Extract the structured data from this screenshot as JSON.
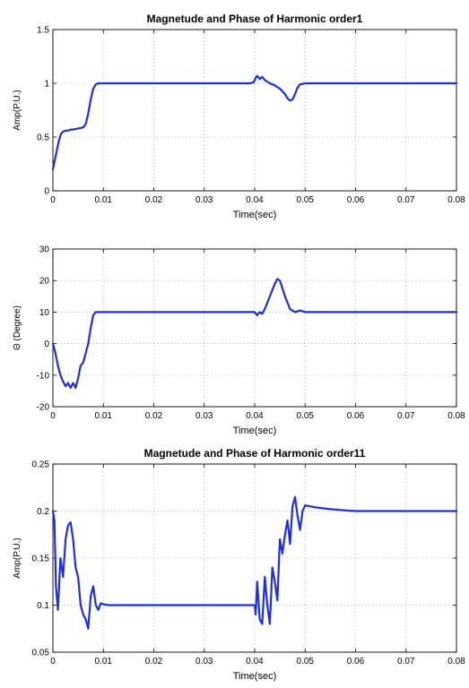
{
  "chart_data": [
    {
      "type": "line",
      "title": "Magnetude and Phase of Harmonic order1",
      "xlabel": "Time(sec)",
      "ylabel": "Amp(P.U.)",
      "xlim": [
        0,
        0.08
      ],
      "ylim": [
        0,
        1.5
      ],
      "xticks": [
        "0",
        "0.01",
        "0.02",
        "0.03",
        "0.04",
        "0.05",
        "0.06",
        "0.07",
        "0.08"
      ],
      "yticks": [
        "0",
        "0.5",
        "1",
        "1.5"
      ],
      "grid": true,
      "color": "#1f2fe0",
      "series": [
        {
          "x": [
            0,
            0.0003,
            0.0008,
            0.0012,
            0.0016,
            0.002,
            0.0025,
            0.003,
            0.0035,
            0.004,
            0.005,
            0.006,
            0.0065,
            0.007,
            0.0075,
            0.008,
            0.0085,
            0.009,
            0.0095,
            0.01,
            0.02,
            0.03,
            0.039,
            0.0398,
            0.0402,
            0.0405,
            0.041,
            0.0415,
            0.042,
            0.043,
            0.044,
            0.045,
            0.046,
            0.0465,
            0.047,
            0.0475,
            0.048,
            0.0485,
            0.049,
            0.05,
            0.06,
            0.07,
            0.08
          ],
          "y": [
            0.2,
            0.27,
            0.38,
            0.47,
            0.53,
            0.55,
            0.56,
            0.56,
            0.57,
            0.57,
            0.58,
            0.59,
            0.62,
            0.72,
            0.85,
            0.95,
            0.99,
            1.0,
            1.0,
            1.0,
            1.0,
            1.0,
            1.0,
            1.01,
            1.05,
            1.07,
            1.04,
            1.06,
            1.03,
            1.0,
            0.98,
            0.95,
            0.9,
            0.86,
            0.84,
            0.85,
            0.9,
            0.96,
            0.99,
            1.0,
            1.0,
            1.0,
            1.0
          ]
        }
      ]
    },
    {
      "type": "line",
      "title": "",
      "xlabel": "Time(sec)",
      "ylabel": "Θ (Degree)",
      "xlim": [
        0,
        0.08
      ],
      "ylim": [
        -20,
        30
      ],
      "xticks": [
        "0",
        "0.01",
        "0.02",
        "0.03",
        "0.04",
        "0.05",
        "0.06",
        "0.07",
        "0.08"
      ],
      "yticks": [
        "-20",
        "-10",
        "0",
        "10",
        "20",
        "30"
      ],
      "grid": true,
      "color": "#1f2fe0",
      "series": [
        {
          "x": [
            0,
            0.0005,
            0.001,
            0.0015,
            0.002,
            0.0025,
            0.003,
            0.0035,
            0.004,
            0.0045,
            0.005,
            0.0055,
            0.006,
            0.0065,
            0.007,
            0.0075,
            0.008,
            0.0085,
            0.009,
            0.01,
            0.02,
            0.03,
            0.04,
            0.0405,
            0.041,
            0.0415,
            0.042,
            0.043,
            0.044,
            0.0445,
            0.045,
            0.046,
            0.047,
            0.048,
            0.049,
            0.05,
            0.06,
            0.07,
            0.08
          ],
          "y": [
            0,
            -3,
            -7,
            -10,
            -12,
            -13.5,
            -12.5,
            -14,
            -12.5,
            -14,
            -11,
            -7,
            -6,
            -3,
            0,
            5,
            9,
            10,
            10,
            10,
            10,
            10,
            10,
            9,
            10,
            9.5,
            11,
            15,
            19,
            20.5,
            20,
            15,
            11,
            10,
            10.5,
            10,
            10,
            10,
            10
          ]
        }
      ]
    },
    {
      "type": "line",
      "title": "Magnetude and Phase of Harmonic order11",
      "xlabel": "Time(sec)",
      "ylabel": "Amp(P.U.)",
      "xlim": [
        0,
        0.08
      ],
      "ylim": [
        0.05,
        0.25
      ],
      "xticks": [
        "0",
        "0.01",
        "0.02",
        "0.03",
        "0.04",
        "0.05",
        "0.06",
        "0.07",
        "0.08"
      ],
      "yticks": [
        "0.05",
        "0.1",
        "0.15",
        "0.2",
        "0.25"
      ],
      "grid": true,
      "color": "#1f2fe0",
      "series": [
        {
          "x": [
            0,
            0.0003,
            0.0006,
            0.001,
            0.0015,
            0.002,
            0.0025,
            0.003,
            0.0035,
            0.004,
            0.0045,
            0.005,
            0.0055,
            0.006,
            0.0065,
            0.007,
            0.0075,
            0.008,
            0.0085,
            0.009,
            0.0095,
            0.01,
            0.011,
            0.02,
            0.03,
            0.04,
            0.0402,
            0.0405,
            0.041,
            0.0415,
            0.042,
            0.0425,
            0.043,
            0.0435,
            0.044,
            0.0445,
            0.045,
            0.0455,
            0.046,
            0.0465,
            0.047,
            0.0475,
            0.048,
            0.0485,
            0.049,
            0.0495,
            0.05,
            0.052,
            0.055,
            0.06,
            0.07,
            0.08
          ],
          "y": [
            0.2,
            0.19,
            0.12,
            0.095,
            0.15,
            0.13,
            0.17,
            0.185,
            0.188,
            0.17,
            0.14,
            0.13,
            0.1,
            0.09,
            0.085,
            0.075,
            0.11,
            0.12,
            0.1,
            0.095,
            0.102,
            0.101,
            0.1,
            0.1,
            0.1,
            0.1,
            0.09,
            0.125,
            0.085,
            0.08,
            0.13,
            0.1,
            0.08,
            0.14,
            0.125,
            0.105,
            0.17,
            0.155,
            0.175,
            0.19,
            0.165,
            0.205,
            0.215,
            0.195,
            0.18,
            0.2,
            0.206,
            0.204,
            0.202,
            0.2,
            0.2,
            0.2
          ]
        }
      ]
    }
  ]
}
